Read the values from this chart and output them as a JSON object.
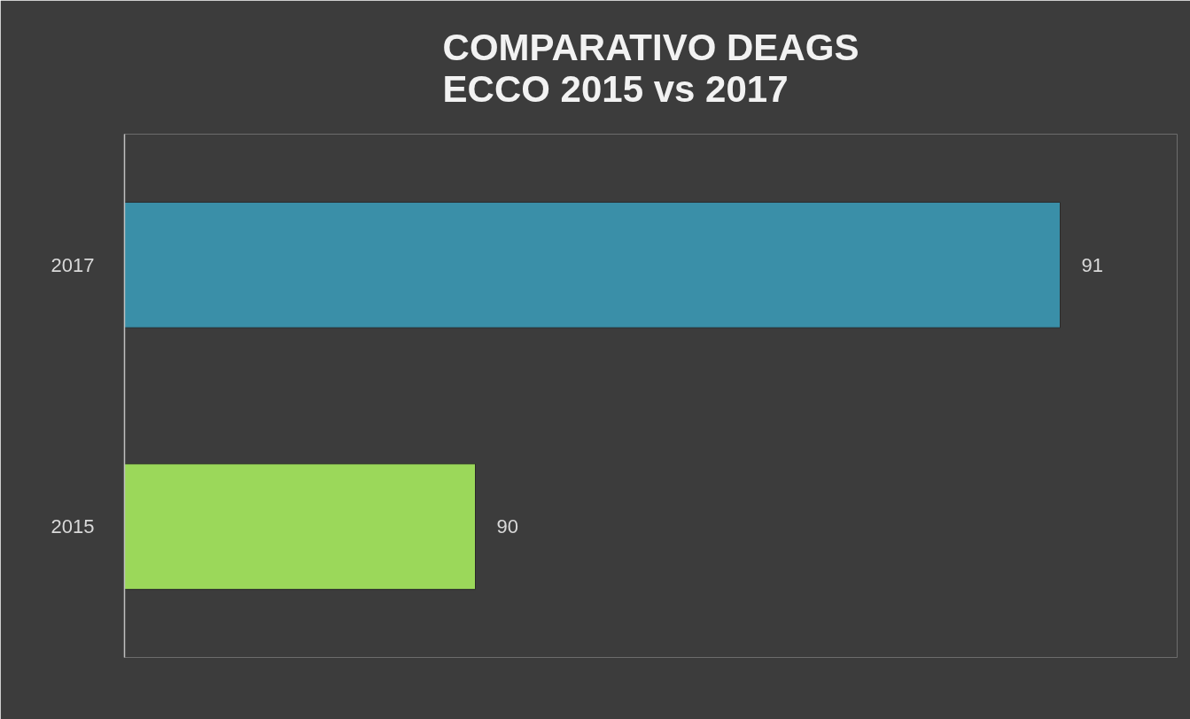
{
  "chart_data": {
    "type": "bar",
    "orientation": "horizontal",
    "title": "COMPARATIVO DEAGS\nECCO 2015 vs 2017",
    "categories": [
      "2017",
      "2015"
    ],
    "values": [
      91,
      90
    ],
    "colors": [
      "#3a8fa8",
      "#9bd85a"
    ],
    "xlim": [
      89.4,
      91.2
    ],
    "data_labels": true,
    "tick_labels": "y",
    "grid": false
  }
}
